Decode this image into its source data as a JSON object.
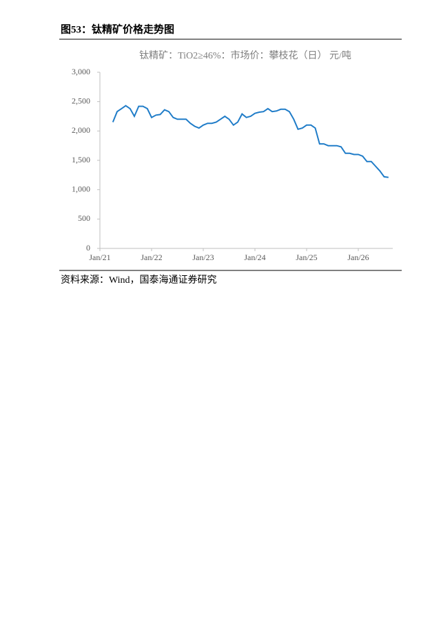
{
  "figure_label": "图53：钛精矿价格走势图",
  "source": "资料来源：Wind，国泰海通证券研究",
  "chart_data": {
    "type": "line",
    "title": "钛精矿：TiO2≥46%：市场价：攀枝花（日） 元/吨",
    "color": "#1f7cc8",
    "x": [
      "2021-04",
      "2021-05",
      "2021-06",
      "2021-07",
      "2021-08",
      "2021-09",
      "2021-10",
      "2021-11",
      "2021-12",
      "2022-01",
      "2022-02",
      "2022-03",
      "2022-04",
      "2022-05",
      "2022-06",
      "2022-07",
      "2022-08",
      "2022-09",
      "2022-10",
      "2022-11",
      "2022-12",
      "2023-01",
      "2023-02",
      "2023-03",
      "2023-04",
      "2023-05",
      "2023-06",
      "2023-07",
      "2023-08",
      "2023-09",
      "2023-10",
      "2023-11",
      "2023-12",
      "2024-01",
      "2024-02",
      "2024-03",
      "2024-04",
      "2024-05",
      "2024-06",
      "2024-07",
      "2024-08",
      "2024-09",
      "2024-10",
      "2024-11",
      "2024-12",
      "2025-01",
      "2025-02",
      "2025-03",
      "2025-04",
      "2025-05",
      "2025-06",
      "2025-07",
      "2025-08",
      "2025-09",
      "2025-10",
      "2025-11",
      "2025-12",
      "2026-01",
      "2026-02",
      "2026-03",
      "2026-04",
      "2026-05",
      "2026-06",
      "2026-07",
      "2026-08"
    ],
    "values": [
      2150,
      2330,
      2380,
      2430,
      2380,
      2250,
      2420,
      2420,
      2380,
      2230,
      2270,
      2280,
      2360,
      2330,
      2230,
      2200,
      2200,
      2200,
      2130,
      2080,
      2050,
      2100,
      2130,
      2130,
      2150,
      2200,
      2250,
      2200,
      2100,
      2150,
      2290,
      2230,
      2250,
      2300,
      2320,
      2330,
      2380,
      2330,
      2340,
      2370,
      2370,
      2330,
      2200,
      2030,
      2050,
      2100,
      2100,
      2050,
      1780,
      1780,
      1750,
      1750,
      1750,
      1730,
      1620,
      1620,
      1600,
      1600,
      1570,
      1480,
      1480,
      1400,
      1320,
      1220,
      1210
    ],
    "xlim": [
      "2021-01",
      "2026-09"
    ],
    "xticks": [
      {
        "value": "2021-01",
        "label": "Jan/21"
      },
      {
        "value": "2022-01",
        "label": "Jan/22"
      },
      {
        "value": "2023-01",
        "label": "Jan/23"
      },
      {
        "value": "2024-01",
        "label": "Jan/24"
      },
      {
        "value": "2025-01",
        "label": "Jan/25"
      },
      {
        "value": "2026-01",
        "label": "Jan/26"
      }
    ],
    "ylim": [
      0,
      3000
    ],
    "yticks": [
      0,
      500,
      {
        "value": 1000,
        "label": "1,000"
      },
      {
        "value": 1500,
        "label": "1,500"
      },
      {
        "value": 2000,
        "label": "2,000"
      },
      {
        "value": 2500,
        "label": "2,500"
      },
      {
        "value": 3000,
        "label": "3,000"
      }
    ]
  }
}
